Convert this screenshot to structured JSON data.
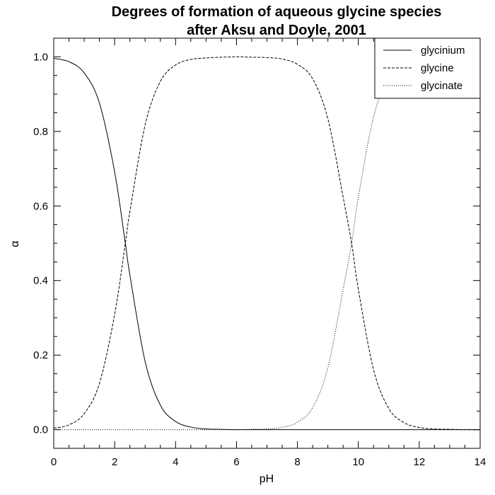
{
  "chart_data": {
    "type": "line",
    "title_lines": [
      "Degrees of formation of aqueous glycine species",
      "after Aksu and Doyle, 2001"
    ],
    "xlabel": "pH",
    "ylabel": "α",
    "xlim": [
      0,
      14
    ],
    "ylim": [
      -0.05,
      1.05
    ],
    "x_ticks": [
      0,
      2,
      4,
      6,
      8,
      10,
      12,
      14
    ],
    "x_tick_labels": [
      "0",
      "2",
      "4",
      "6",
      "8",
      "10",
      "12",
      "14"
    ],
    "y_ticks": [
      0.0,
      0.2,
      0.4,
      0.6,
      0.8,
      1.0
    ],
    "y_tick_labels": [
      "0.0",
      "0.2",
      "0.4",
      "0.6",
      "0.8",
      "1.0"
    ],
    "grid": false,
    "legend_position": "top-right",
    "x": [
      0,
      0.5,
      1,
      1.5,
      2,
      2.35,
      2.5,
      3,
      3.5,
      4,
      4.5,
      5,
      5.5,
      6,
      6.5,
      7,
      7.5,
      8,
      8.5,
      9,
      9.5,
      9.78,
      10,
      10.5,
      11,
      11.5,
      12,
      12.5,
      13,
      13.5,
      14
    ],
    "series": [
      {
        "name": "glycinium",
        "style": "solid",
        "values": [
          0.996,
          0.987,
          0.957,
          0.876,
          0.691,
          0.5,
          0.415,
          0.183,
          0.066,
          0.022,
          0.007,
          0.002,
          0.001,
          0.0,
          0.0,
          0.0,
          0.0,
          0.0,
          0.0,
          0.0,
          0.0,
          0.0,
          0.0,
          0.0,
          0.0,
          0.0,
          0.0,
          0.0,
          0.0,
          0.0,
          0.0
        ]
      },
      {
        "name": "glycine",
        "style": "dashed",
        "values": [
          0.004,
          0.013,
          0.043,
          0.124,
          0.309,
          0.5,
          0.585,
          0.817,
          0.934,
          0.978,
          0.993,
          0.997,
          0.999,
          1.0,
          0.999,
          0.998,
          0.994,
          0.98,
          0.941,
          0.834,
          0.624,
          0.5,
          0.377,
          0.161,
          0.057,
          0.019,
          0.006,
          0.002,
          0.001,
          0.0,
          0.0
        ]
      },
      {
        "name": "glycinate",
        "style": "dotted",
        "values": [
          0.0,
          0.0,
          0.0,
          0.0,
          0.0,
          0.0,
          0.0,
          0.0,
          0.0,
          0.0,
          0.0,
          0.0,
          0.0,
          0.0,
          0.001,
          0.002,
          0.006,
          0.02,
          0.059,
          0.166,
          0.376,
          0.5,
          0.623,
          0.839,
          0.943,
          0.981,
          0.994,
          0.998,
          0.999,
          1.0,
          1.0
        ]
      }
    ]
  }
}
